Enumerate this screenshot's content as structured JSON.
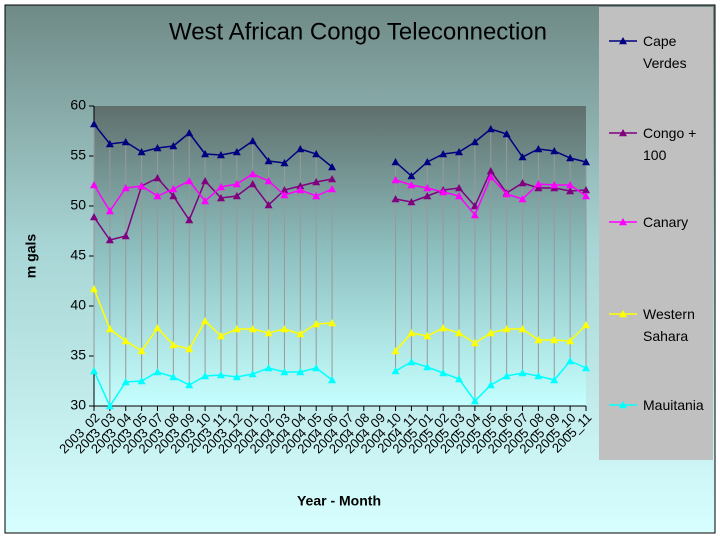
{
  "chart_data": {
    "type": "line",
    "title": "West African Congo Teleconnection",
    "x_label": "Year - Month",
    "y_label": "m gals",
    "categories": [
      "2003_02",
      "2003_03",
      "2003_04",
      "2003_05",
      "2003_07",
      "2003_08",
      "2003_09",
      "2003_10",
      "2003_11",
      "2003_12",
      "2004_01",
      "2004_02",
      "2004_03",
      "2004_04",
      "2004_05",
      "2004_06",
      "2004_07",
      "2004_08",
      "2004_09",
      "2004_10",
      "2004_11",
      "2005_01",
      "2005_02",
      "2005_03",
      "2005_04",
      "2005_05",
      "2005_06",
      "2005_07",
      "2005_08",
      "2005_09",
      "2005_10",
      "2005_11"
    ],
    "ylim": [
      30,
      60
    ],
    "yticks": [
      30,
      35,
      40,
      45,
      50,
      55,
      60
    ],
    "high_low_lines": true,
    "series": [
      {
        "name": "Cape Verdes",
        "color": "#000080",
        "values": [
          58.2,
          56.2,
          56.4,
          55.4,
          55.8,
          56.0,
          57.3,
          55.2,
          55.1,
          55.4,
          56.5,
          54.5,
          54.3,
          55.7,
          55.2,
          53.9,
          null,
          null,
          null,
          54.4,
          53.0,
          54.4,
          55.2,
          55.4,
          56.4,
          57.7,
          57.2,
          54.9,
          55.7,
          55.5,
          54.8,
          54.4
        ]
      },
      {
        "name": "Congo + 100",
        "color": "#800080",
        "values": [
          48.9,
          46.6,
          47.0,
          52.0,
          52.8,
          51.0,
          48.6,
          52.5,
          50.8,
          51.0,
          52.2,
          50.1,
          51.6,
          52.0,
          52.4,
          52.7,
          null,
          null,
          null,
          50.7,
          50.4,
          51.0,
          51.6,
          51.8,
          50.0,
          53.5,
          51.3,
          52.3,
          51.8,
          51.8,
          51.5,
          51.6
        ]
      },
      {
        "name": "Canary",
        "color": "#ff00ff",
        "values": [
          52.1,
          49.5,
          51.8,
          52.0,
          51.0,
          51.7,
          52.5,
          50.5,
          51.9,
          52.2,
          53.2,
          52.5,
          51.1,
          51.6,
          51.0,
          51.7,
          null,
          null,
          null,
          52.6,
          52.1,
          51.8,
          51.4,
          51.0,
          49.1,
          52.9,
          51.2,
          50.7,
          52.2,
          52.1,
          52.1,
          51.0
        ]
      },
      {
        "name": "Western Sahara",
        "color": "#ffff00",
        "values": [
          41.7,
          37.7,
          36.5,
          35.5,
          37.8,
          36.1,
          35.7,
          38.5,
          37.0,
          37.7,
          37.7,
          37.3,
          37.7,
          37.2,
          38.2,
          38.3,
          null,
          null,
          null,
          35.5,
          37.3,
          37.0,
          37.8,
          37.3,
          36.3,
          37.3,
          37.7,
          37.7,
          36.6,
          36.6,
          36.5,
          38.1
        ]
      },
      {
        "name": "Mauitania",
        "color": "#00ffff",
        "values": [
          33.5,
          30.0,
          32.4,
          32.5,
          33.4,
          32.9,
          32.1,
          33.0,
          33.1,
          32.9,
          33.2,
          33.8,
          33.4,
          33.4,
          33.8,
          32.6,
          null,
          null,
          null,
          33.5,
          34.4,
          33.9,
          33.3,
          32.7,
          30.5,
          32.1,
          33.0,
          33.3,
          33.0,
          32.6,
          34.5,
          33.8
        ]
      }
    ]
  }
}
